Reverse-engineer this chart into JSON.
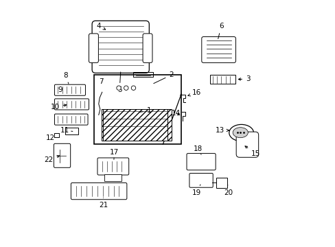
{
  "title": "",
  "background_color": "#ffffff",
  "fig_width": 4.89,
  "fig_height": 3.6,
  "dpi": 100,
  "line_color": "#000000",
  "label_fontsize": 7.5,
  "label_color": "#000000"
}
